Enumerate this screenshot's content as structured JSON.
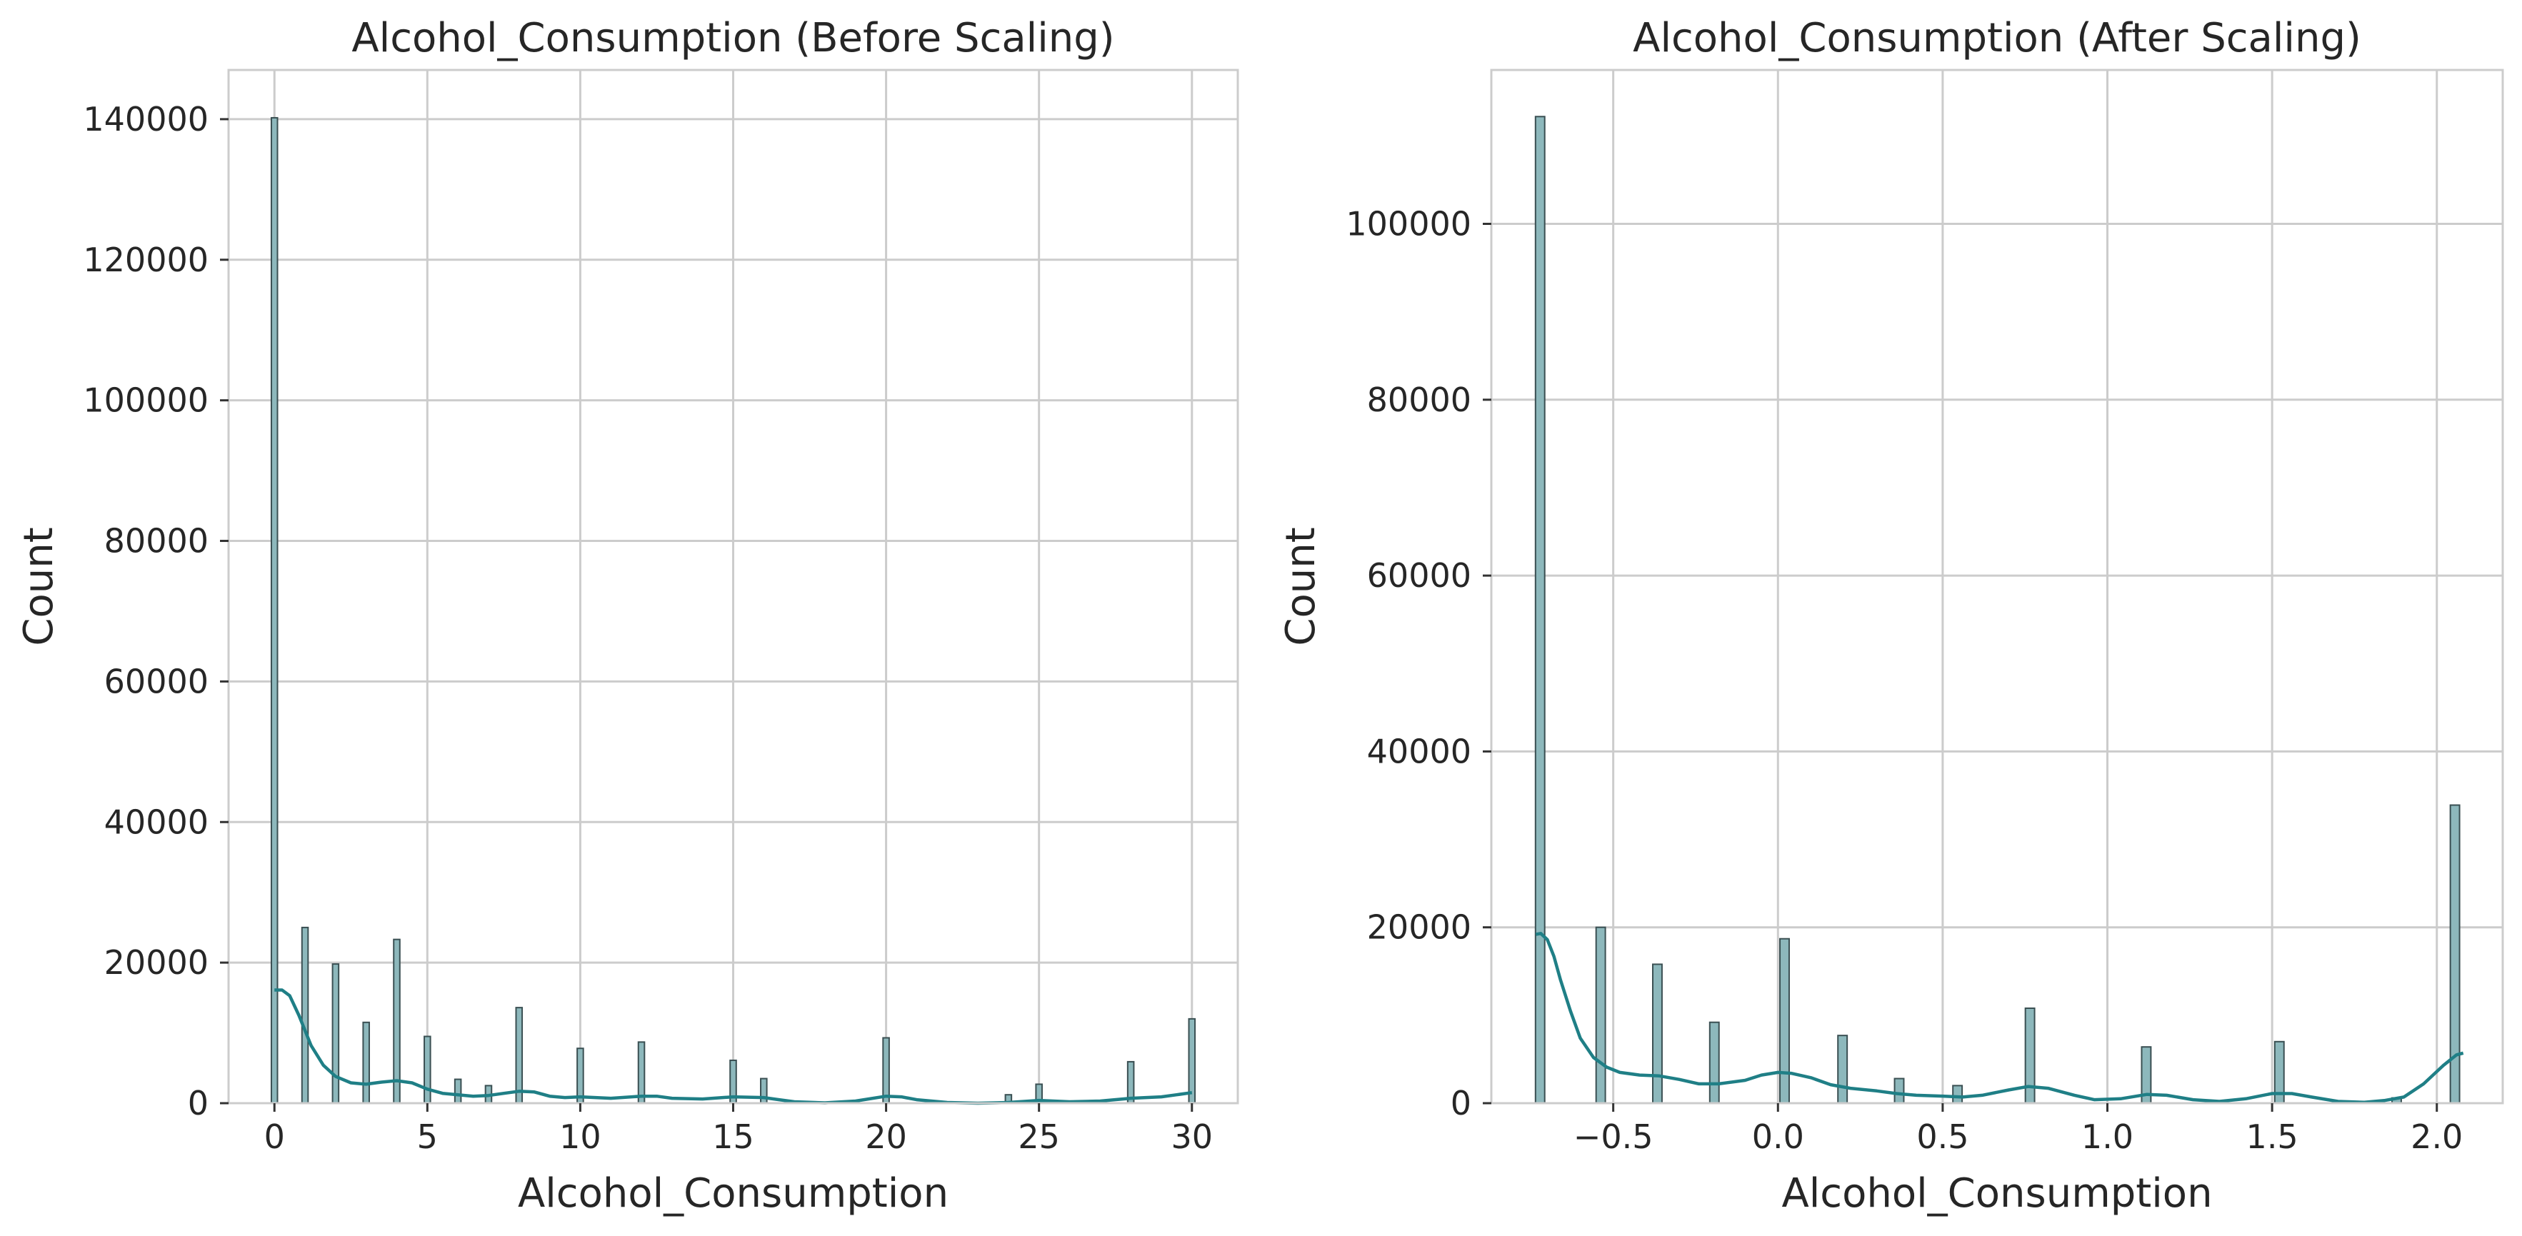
{
  "chart_data": [
    {
      "type": "bar",
      "title": "Alcohol_Consumption (Before Scaling)",
      "xlabel": "Alcohol_Consumption",
      "ylabel": "Count",
      "xlim": [
        -1.5,
        31.5
      ],
      "ylim": [
        0,
        147000
      ],
      "xticks": [
        0,
        5,
        10,
        15,
        20,
        25,
        30
      ],
      "xtick_labels": [
        "0",
        "5",
        "10",
        "15",
        "20",
        "25",
        "30"
      ],
      "yticks": [
        0,
        20000,
        40000,
        60000,
        80000,
        100000,
        120000,
        140000
      ],
      "ytick_labels": [
        "0",
        "20000",
        "40000",
        "60000",
        "80000",
        "100000",
        "120000",
        "140000"
      ],
      "bin_width": 0.2,
      "bars": [
        {
          "x": 0,
          "count": 140200
        },
        {
          "x": 1,
          "count": 25000
        },
        {
          "x": 2,
          "count": 19800
        },
        {
          "x": 3,
          "count": 11500
        },
        {
          "x": 4,
          "count": 23300
        },
        {
          "x": 5,
          "count": 9500
        },
        {
          "x": 6,
          "count": 3400
        },
        {
          "x": 7,
          "count": 2500
        },
        {
          "x": 8,
          "count": 13600
        },
        {
          "x": 10,
          "count": 7800
        },
        {
          "x": 12,
          "count": 8700
        },
        {
          "x": 15,
          "count": 6100
        },
        {
          "x": 16,
          "count": 3500
        },
        {
          "x": 20,
          "count": 9300
        },
        {
          "x": 24,
          "count": 1200
        },
        {
          "x": 25,
          "count": 2700
        },
        {
          "x": 28,
          "count": 5900
        },
        {
          "x": 30,
          "count": 12000
        }
      ],
      "kde": [
        [
          0,
          16100
        ],
        [
          0.25,
          16100
        ],
        [
          0.5,
          15300
        ],
        [
          0.8,
          12500
        ],
        [
          1.2,
          8200
        ],
        [
          1.6,
          5400
        ],
        [
          2,
          3800
        ],
        [
          2.5,
          2900
        ],
        [
          3,
          2700
        ],
        [
          3.5,
          3000
        ],
        [
          4,
          3200
        ],
        [
          4.5,
          2900
        ],
        [
          5,
          2000
        ],
        [
          5.5,
          1400
        ],
        [
          6,
          1200
        ],
        [
          6.5,
          1000
        ],
        [
          7,
          1100
        ],
        [
          7.5,
          1400
        ],
        [
          8,
          1700
        ],
        [
          8.5,
          1600
        ],
        [
          9,
          1000
        ],
        [
          9.5,
          800
        ],
        [
          10,
          900
        ],
        [
          10.5,
          800
        ],
        [
          11,
          700
        ],
        [
          12,
          1000
        ],
        [
          12.5,
          1000
        ],
        [
          13,
          700
        ],
        [
          14,
          600
        ],
        [
          15,
          900
        ],
        [
          16,
          800
        ],
        [
          16.5,
          500
        ],
        [
          17,
          200
        ],
        [
          18,
          50
        ],
        [
          19,
          300
        ],
        [
          20,
          1000
        ],
        [
          20.5,
          900
        ],
        [
          21,
          500
        ],
        [
          22,
          100
        ],
        [
          23,
          0
        ],
        [
          24,
          100
        ],
        [
          25,
          400
        ],
        [
          26,
          200
        ],
        [
          27,
          300
        ],
        [
          28,
          700
        ],
        [
          29,
          900
        ],
        [
          29.5,
          1200
        ],
        [
          30,
          1500
        ]
      ],
      "bar_color": "#8db8bc",
      "line_color": "#1f7f86"
    },
    {
      "type": "bar",
      "title": "Alcohol_Consumption (After Scaling)",
      "xlabel": "Alcohol_Consumption",
      "ylabel": "Count",
      "xlim": [
        -0.87,
        2.2
      ],
      "ylim": [
        0,
        117500
      ],
      "xticks": [
        -0.5,
        0.0,
        0.5,
        1.0,
        1.5,
        2.0
      ],
      "xtick_labels": [
        "−0.5",
        "0.0",
        "0.5",
        "1.0",
        "1.5",
        "2.0"
      ],
      "yticks": [
        0,
        20000,
        40000,
        60000,
        80000,
        100000
      ],
      "ytick_labels": [
        "0",
        "20000",
        "40000",
        "60000",
        "80000",
        "100000"
      ],
      "bin_width": 0.028,
      "bars": [
        {
          "x": -0.722,
          "count": 112200
        },
        {
          "x": -0.538,
          "count": 20000
        },
        {
          "x": -0.366,
          "count": 15800
        },
        {
          "x": -0.193,
          "count": 9200
        },
        {
          "x": 0.02,
          "count": 18700
        },
        {
          "x": 0.196,
          "count": 7700
        },
        {
          "x": 0.368,
          "count": 2800
        },
        {
          "x": 0.545,
          "count": 2000
        },
        {
          "x": 0.765,
          "count": 10800
        },
        {
          "x": 1.118,
          "count": 6400
        },
        {
          "x": 1.522,
          "count": 7000
        },
        {
          "x": 1.878,
          "count": 600
        },
        {
          "x": 2.055,
          "count": 33900
        }
      ],
      "kde": [
        [
          -0.735,
          19200
        ],
        [
          -0.72,
          19300
        ],
        [
          -0.7,
          18600
        ],
        [
          -0.68,
          16700
        ],
        [
          -0.66,
          14000
        ],
        [
          -0.63,
          10500
        ],
        [
          -0.6,
          7400
        ],
        [
          -0.56,
          5200
        ],
        [
          -0.52,
          4100
        ],
        [
          -0.48,
          3500
        ],
        [
          -0.42,
          3200
        ],
        [
          -0.36,
          3100
        ],
        [
          -0.3,
          2700
        ],
        [
          -0.24,
          2200
        ],
        [
          -0.18,
          2200
        ],
        [
          -0.1,
          2600
        ],
        [
          -0.05,
          3200
        ],
        [
          0,
          3500
        ],
        [
          0.04,
          3400
        ],
        [
          0.1,
          2900
        ],
        [
          0.16,
          2100
        ],
        [
          0.22,
          1700
        ],
        [
          0.3,
          1400
        ],
        [
          0.36,
          1100
        ],
        [
          0.42,
          900
        ],
        [
          0.5,
          800
        ],
        [
          0.56,
          700
        ],
        [
          0.62,
          900
        ],
        [
          0.7,
          1500
        ],
        [
          0.76,
          1900
        ],
        [
          0.82,
          1700
        ],
        [
          0.9,
          900
        ],
        [
          0.96,
          400
        ],
        [
          1.04,
          500
        ],
        [
          1.12,
          1000
        ],
        [
          1.18,
          900
        ],
        [
          1.26,
          400
        ],
        [
          1.34,
          200
        ],
        [
          1.42,
          500
        ],
        [
          1.5,
          1100
        ],
        [
          1.56,
          1100
        ],
        [
          1.62,
          700
        ],
        [
          1.7,
          200
        ],
        [
          1.78,
          100
        ],
        [
          1.84,
          300
        ],
        [
          1.9,
          700
        ],
        [
          1.96,
          2200
        ],
        [
          2.02,
          4300
        ],
        [
          2.06,
          5500
        ],
        [
          2.08,
          5700
        ]
      ],
      "bar_color": "#8db8bc",
      "line_color": "#1f7f86"
    }
  ]
}
